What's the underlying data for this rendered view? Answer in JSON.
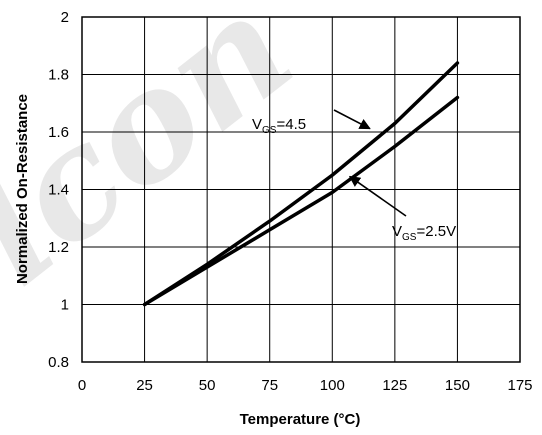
{
  "watermark": "lcon",
  "chart_data": {
    "type": "line",
    "title": "",
    "xlabel": "Temperature (°C)",
    "ylabel": "Normalized On-Resistance",
    "xlim": [
      0,
      175
    ],
    "ylim": [
      0.8,
      2
    ],
    "xticks": [
      0,
      25,
      50,
      75,
      100,
      125,
      150,
      175
    ],
    "yticks": [
      0.8,
      1,
      1.2,
      1.4,
      1.6,
      1.8,
      2
    ],
    "xtick_labels": [
      "0",
      "25",
      "50",
      "75",
      "100",
      "125",
      "150",
      "175"
    ],
    "ytick_labels": [
      "0.8",
      "1",
      "1.2",
      "1.4",
      "1.6",
      "1.8",
      "2"
    ],
    "grid": true,
    "legend": "none",
    "series": [
      {
        "x": [
          25,
          50,
          75,
          100,
          125,
          150
        ],
        "values": [
          1.0,
          1.14,
          1.29,
          1.45,
          1.63,
          1.84
        ]
      },
      {
        "x": [
          25,
          50,
          75,
          100,
          125,
          150
        ],
        "values": [
          1.0,
          1.13,
          1.26,
          1.39,
          1.55,
          1.72
        ]
      }
    ],
    "annotations": [
      {
        "main": "V",
        "sub": "GS",
        "tail": "=4.5",
        "target": [
          115,
          1.612
        ]
      },
      {
        "main": "V",
        "sub": "GS",
        "tail": "=2.5V",
        "target": [
          107,
          1.445
        ]
      }
    ]
  }
}
